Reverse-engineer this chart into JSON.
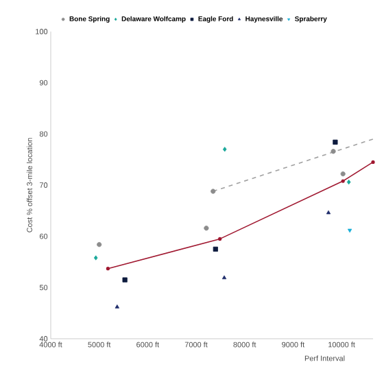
{
  "chart_data": {
    "type": "scatter",
    "xlabel": "Perf Interval",
    "ylabel": "Cost % offset 3-mile location",
    "xlim": [
      4000,
      10650
    ],
    "xticks": [
      {
        "value": 4000,
        "label": "4000 ft"
      },
      {
        "value": 5000,
        "label": "5000 ft"
      },
      {
        "value": 6000,
        "label": "6000 ft"
      },
      {
        "value": 7000,
        "label": "7000 ft"
      },
      {
        "value": 8000,
        "label": "8000 ft"
      },
      {
        "value": 9000,
        "label": "9000 ft"
      },
      {
        "value": 10000,
        "label": "10000 ft"
      }
    ],
    "ylim": [
      40,
      100
    ],
    "yticks": [
      40,
      50,
      60,
      70,
      80,
      90,
      100
    ],
    "grid": false,
    "legend": "top",
    "series": [
      {
        "name": "Bone Spring",
        "color": "#8c8c8c",
        "marker": "circle",
        "x": [
          5000,
          7210,
          7350,
          9830,
          10030
        ],
        "values": [
          58.4,
          61.6,
          68.8,
          76.6,
          72.2
        ]
      },
      {
        "name": "Delaware Wolfcamp",
        "color": "#1aa89a",
        "marker": "diamond",
        "x": [
          4930,
          7590,
          10150
        ],
        "values": [
          55.8,
          77.0,
          70.6
        ]
      },
      {
        "name": "Eagle Ford",
        "color": "#0d1b3e",
        "marker": "square",
        "x": [
          5530,
          7400,
          9870
        ],
        "values": [
          51.5,
          57.5,
          78.4
        ]
      },
      {
        "name": "Haynesville",
        "color": "#1f2d6b",
        "marker": "triangle",
        "x": [
          5370,
          7580,
          9730
        ],
        "values": [
          46.2,
          51.9,
          64.6
        ]
      },
      {
        "name": "Spraberry",
        "color": "#1ab0d8",
        "marker": "triangle down",
        "x": [
          10170
        ],
        "values": [
          61.2
        ]
      },
      {
        "type": "line",
        "color": "#a0a0a0",
        "line_style": "dashed",
        "marker": "none",
        "x": [
          7350,
          10650
        ],
        "values": [
          68.8,
          79.0
        ]
      },
      {
        "type": "line",
        "color": "#a01830",
        "line_style": "solid",
        "marker": "circle",
        "x": [
          5180,
          7490,
          10030,
          10650
        ],
        "values": [
          53.7,
          59.5,
          70.8,
          74.5
        ]
      }
    ]
  }
}
